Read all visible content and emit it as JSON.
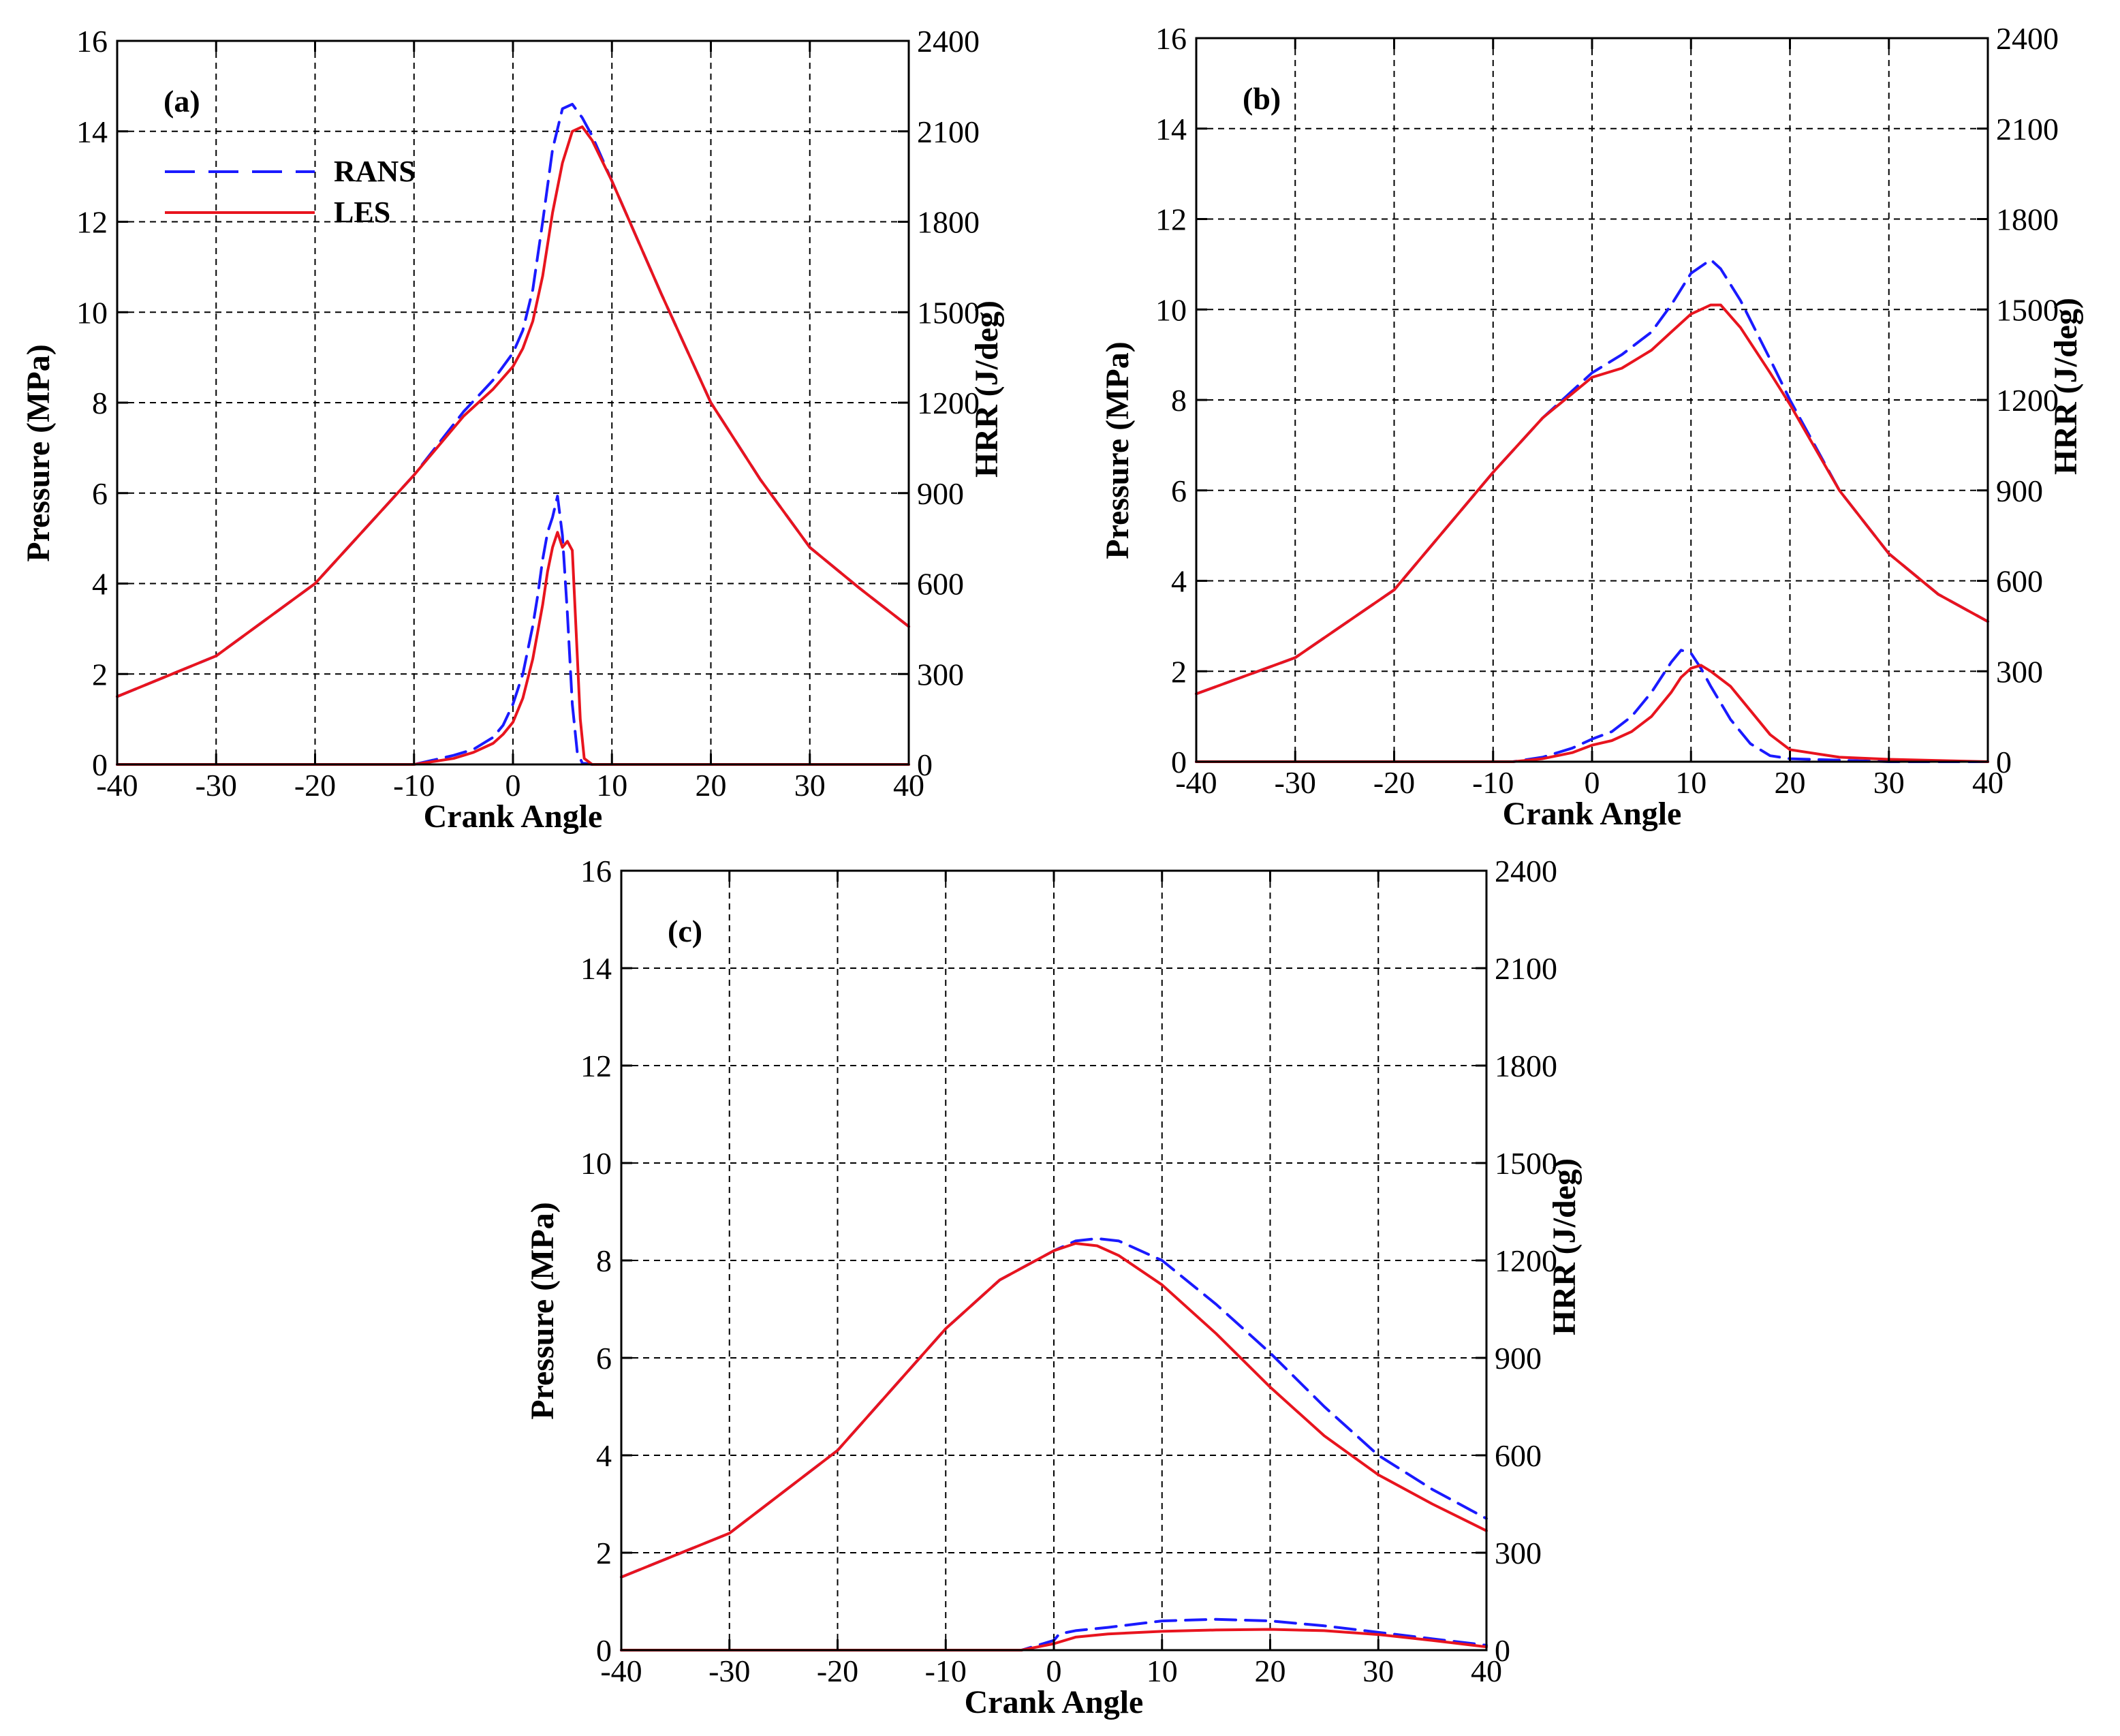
{
  "chart_data": [
    {
      "id": "a",
      "type": "line",
      "panel_label": "(a)",
      "xlabel": "Crank Angle",
      "ylabel": "Pressure (MPa)",
      "y2label": "HRR (J/deg)",
      "xlim": [
        -40,
        40
      ],
      "ylim": [
        0,
        16
      ],
      "y2lim": [
        0,
        2400
      ],
      "xticks": [
        "-40",
        "-30",
        "-20",
        "-10",
        "0",
        "10",
        "20",
        "30",
        "40"
      ],
      "yticks": [
        "0",
        "2",
        "4",
        "6",
        "8",
        "10",
        "12",
        "14",
        "16"
      ],
      "y2ticks": [
        "0",
        "300",
        "600",
        "900",
        "1200",
        "1500",
        "1800",
        "2100",
        "2400"
      ],
      "grid": true,
      "legend": {
        "position": "upper-left",
        "entries": [
          {
            "name": "RANS",
            "color": "#1a1aff",
            "style": "dashed"
          },
          {
            "name": "LES",
            "color": "#e8141e",
            "style": "solid"
          }
        ]
      },
      "series": [
        {
          "name": "RANS",
          "quantity": "pressure",
          "axis": "left",
          "color": "#1a1aff",
          "style": "dashed",
          "x": [
            -40,
            -30,
            -20,
            -10,
            -5,
            -2,
            0,
            1,
            2,
            3,
            4,
            5,
            6,
            7,
            8,
            10,
            12,
            15,
            20,
            25,
            30,
            35,
            40
          ],
          "y": [
            1.5,
            2.4,
            4.0,
            6.4,
            7.8,
            8.5,
            9.1,
            9.6,
            10.5,
            12.0,
            13.6,
            14.5,
            14.6,
            14.3,
            13.9,
            12.9,
            11.9,
            10.4,
            8.0,
            6.3,
            4.8,
            3.9,
            3.05
          ]
        },
        {
          "name": "LES",
          "quantity": "pressure",
          "axis": "left",
          "color": "#e8141e",
          "style": "solid",
          "x": [
            -40,
            -30,
            -20,
            -10,
            -5,
            -2,
            0,
            1,
            2,
            3,
            4,
            5,
            6,
            7,
            8,
            10,
            12,
            15,
            20,
            25,
            30,
            35,
            40
          ],
          "y": [
            1.5,
            2.4,
            4.0,
            6.4,
            7.7,
            8.3,
            8.8,
            9.2,
            9.8,
            10.8,
            12.2,
            13.3,
            14.0,
            14.1,
            13.8,
            12.9,
            11.9,
            10.4,
            8.0,
            6.3,
            4.8,
            3.9,
            3.05
          ]
        },
        {
          "name": "RANS",
          "quantity": "HRR",
          "axis": "right",
          "color": "#1a1aff",
          "style": "dashed",
          "x": [
            -40,
            -10,
            -8,
            -6,
            -4,
            -2,
            -1,
            0,
            1,
            2,
            2.5,
            3,
            3.5,
            4,
            4.5,
            5,
            5.5,
            6,
            6.5,
            7,
            8,
            10,
            40
          ],
          "y": [
            0,
            0,
            15,
            30,
            50,
            90,
            130,
            200,
            300,
            460,
            560,
            680,
            770,
            820,
            890,
            760,
            500,
            200,
            40,
            5,
            0,
            0,
            0
          ]
        },
        {
          "name": "LES",
          "quantity": "HRR",
          "axis": "right",
          "color": "#e8141e",
          "style": "solid",
          "x": [
            -40,
            -10,
            -8,
            -6,
            -4,
            -2,
            -1,
            0,
            1,
            2,
            3,
            3.5,
            4,
            4.5,
            5,
            5.5,
            6,
            6.3,
            6.8,
            7.2,
            8,
            10,
            40
          ],
          "y": [
            0,
            0,
            10,
            20,
            40,
            70,
            100,
            140,
            220,
            350,
            530,
            640,
            720,
            770,
            720,
            740,
            710,
            500,
            150,
            20,
            0,
            0,
            0
          ]
        }
      ]
    },
    {
      "id": "b",
      "type": "line",
      "panel_label": "(b)",
      "xlabel": "Crank Angle",
      "ylabel": "Pressure (MPa)",
      "y2label": "HRR (J/deg)",
      "xlim": [
        -40,
        40
      ],
      "ylim": [
        0,
        16
      ],
      "y2lim": [
        0,
        2400
      ],
      "xticks": [
        "-40",
        "-30",
        "-20",
        "-10",
        "0",
        "10",
        "20",
        "30",
        "40"
      ],
      "yticks": [
        "0",
        "2",
        "4",
        "6",
        "8",
        "10",
        "12",
        "14",
        "16"
      ],
      "y2ticks": [
        "0",
        "300",
        "600",
        "900",
        "1200",
        "1500",
        "1800",
        "2100",
        "2400"
      ],
      "grid": true,
      "series": [
        {
          "name": "RANS",
          "quantity": "pressure",
          "axis": "left",
          "color": "#1a1aff",
          "style": "dashed",
          "x": [
            -40,
            -30,
            -20,
            -10,
            -5,
            0,
            3,
            6,
            8,
            10,
            12,
            13,
            15,
            18,
            20,
            25,
            30,
            35,
            40
          ],
          "y": [
            1.5,
            2.3,
            3.8,
            6.4,
            7.6,
            8.6,
            9.0,
            9.5,
            10.1,
            10.8,
            11.1,
            10.9,
            10.2,
            8.9,
            8.0,
            6.0,
            4.6,
            3.7,
            3.1
          ]
        },
        {
          "name": "LES",
          "quantity": "pressure",
          "axis": "left",
          "color": "#e8141e",
          "style": "solid",
          "x": [
            -40,
            -30,
            -20,
            -10,
            -5,
            0,
            3,
            6,
            8,
            10,
            12,
            13,
            15,
            18,
            20,
            25,
            30,
            35,
            40
          ],
          "y": [
            1.5,
            2.3,
            3.8,
            6.4,
            7.6,
            8.5,
            8.7,
            9.1,
            9.5,
            9.9,
            10.1,
            10.1,
            9.6,
            8.6,
            7.9,
            6.0,
            4.6,
            3.7,
            3.1
          ]
        },
        {
          "name": "RANS",
          "quantity": "HRR",
          "axis": "right",
          "color": "#1a1aff",
          "style": "dashed",
          "x": [
            -40,
            -8,
            -5,
            -2,
            0,
            2,
            4,
            6,
            8,
            9,
            10,
            11,
            12,
            14,
            16,
            18,
            20,
            25,
            30,
            40
          ],
          "y": [
            0,
            0,
            15,
            45,
            75,
            100,
            150,
            230,
            330,
            370,
            360,
            310,
            250,
            140,
            60,
            20,
            10,
            5,
            0,
            0
          ]
        },
        {
          "name": "LES",
          "quantity": "HRR",
          "axis": "right",
          "color": "#e8141e",
          "style": "solid",
          "x": [
            -40,
            -8,
            -5,
            -2,
            0,
            2,
            4,
            6,
            8,
            9,
            10,
            11,
            12,
            14,
            16,
            18,
            20,
            25,
            30,
            40
          ],
          "y": [
            0,
            0,
            10,
            30,
            55,
            70,
            100,
            150,
            230,
            280,
            310,
            320,
            300,
            250,
            170,
            90,
            40,
            15,
            8,
            0
          ]
        }
      ]
    },
    {
      "id": "c",
      "type": "line",
      "panel_label": "(c)",
      "xlabel": "Crank Angle",
      "ylabel": "Pressure (MPa)",
      "y2label": "HRR (J/deg)",
      "xlim": [
        -40,
        40
      ],
      "ylim": [
        0,
        16
      ],
      "y2lim": [
        0,
        2400
      ],
      "xticks": [
        "-40",
        "-30",
        "-20",
        "-10",
        "0",
        "10",
        "20",
        "30",
        "40"
      ],
      "yticks": [
        "0",
        "2",
        "4",
        "6",
        "8",
        "10",
        "12",
        "14",
        "16"
      ],
      "y2ticks": [
        "0",
        "300",
        "600",
        "900",
        "1200",
        "1500",
        "1800",
        "2100",
        "2400"
      ],
      "grid": true,
      "series": [
        {
          "name": "RANS",
          "quantity": "pressure",
          "axis": "left",
          "color": "#1a1aff",
          "style": "dashed",
          "x": [
            -40,
            -30,
            -20,
            -10,
            -5,
            0,
            2,
            4,
            6,
            10,
            15,
            20,
            25,
            30,
            35,
            40
          ],
          "y": [
            1.5,
            2.4,
            4.1,
            6.6,
            7.6,
            8.2,
            8.4,
            8.45,
            8.4,
            8.0,
            7.1,
            6.1,
            5.0,
            4.0,
            3.3,
            2.7
          ]
        },
        {
          "name": "LES",
          "quantity": "pressure",
          "axis": "left",
          "color": "#e8141e",
          "style": "solid",
          "x": [
            -40,
            -30,
            -20,
            -10,
            -5,
            0,
            2,
            4,
            6,
            10,
            15,
            20,
            25,
            30,
            35,
            40
          ],
          "y": [
            1.5,
            2.4,
            4.1,
            6.6,
            7.6,
            8.2,
            8.35,
            8.3,
            8.1,
            7.5,
            6.5,
            5.4,
            4.4,
            3.6,
            3.0,
            2.45
          ]
        },
        {
          "name": "RANS",
          "quantity": "HRR",
          "axis": "right",
          "color": "#1a1aff",
          "style": "dashed",
          "x": [
            -40,
            -3,
            0,
            0.5,
            2,
            5,
            10,
            15,
            20,
            25,
            30,
            35,
            40
          ],
          "y": [
            0,
            0,
            30,
            50,
            60,
            70,
            90,
            95,
            90,
            75,
            55,
            35,
            15
          ]
        },
        {
          "name": "LES",
          "quantity": "HRR",
          "axis": "right",
          "color": "#e8141e",
          "style": "solid",
          "x": [
            -40,
            -3,
            0,
            2,
            5,
            10,
            15,
            20,
            25,
            30,
            35,
            40
          ],
          "y": [
            0,
            0,
            20,
            40,
            50,
            58,
            62,
            64,
            60,
            48,
            30,
            10
          ]
        }
      ]
    }
  ]
}
